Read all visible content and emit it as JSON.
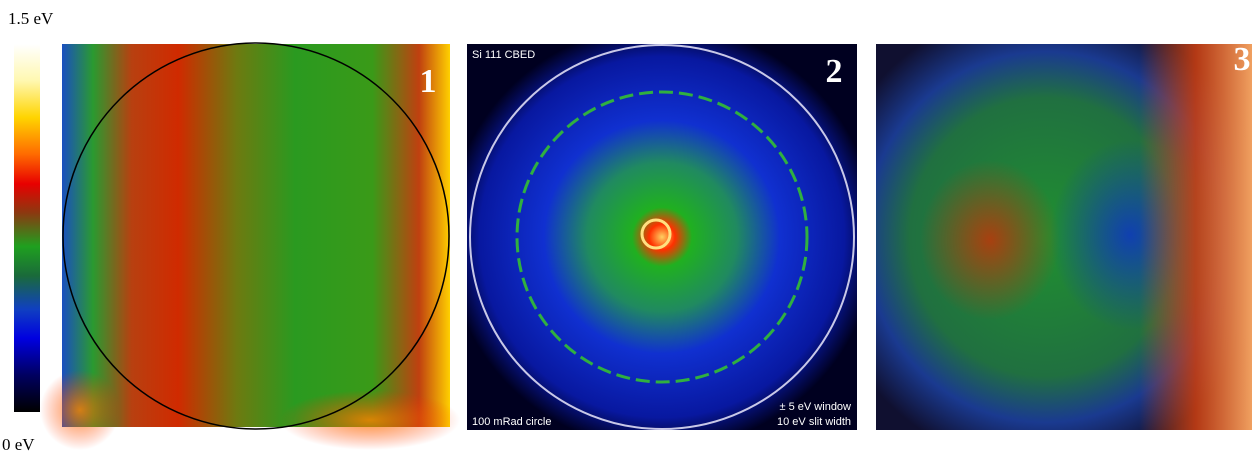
{
  "colorbar": {
    "top_label": "1.5 eV",
    "bottom_label": "0 eV"
  },
  "panels": [
    {
      "number": "1"
    },
    {
      "number": "2",
      "caption": "Si  111 CBED",
      "circle_label": "100 mRad circle",
      "window": "± 5 eV window",
      "slit": "10 eV slit width"
    },
    {
      "number": "3"
    }
  ]
}
